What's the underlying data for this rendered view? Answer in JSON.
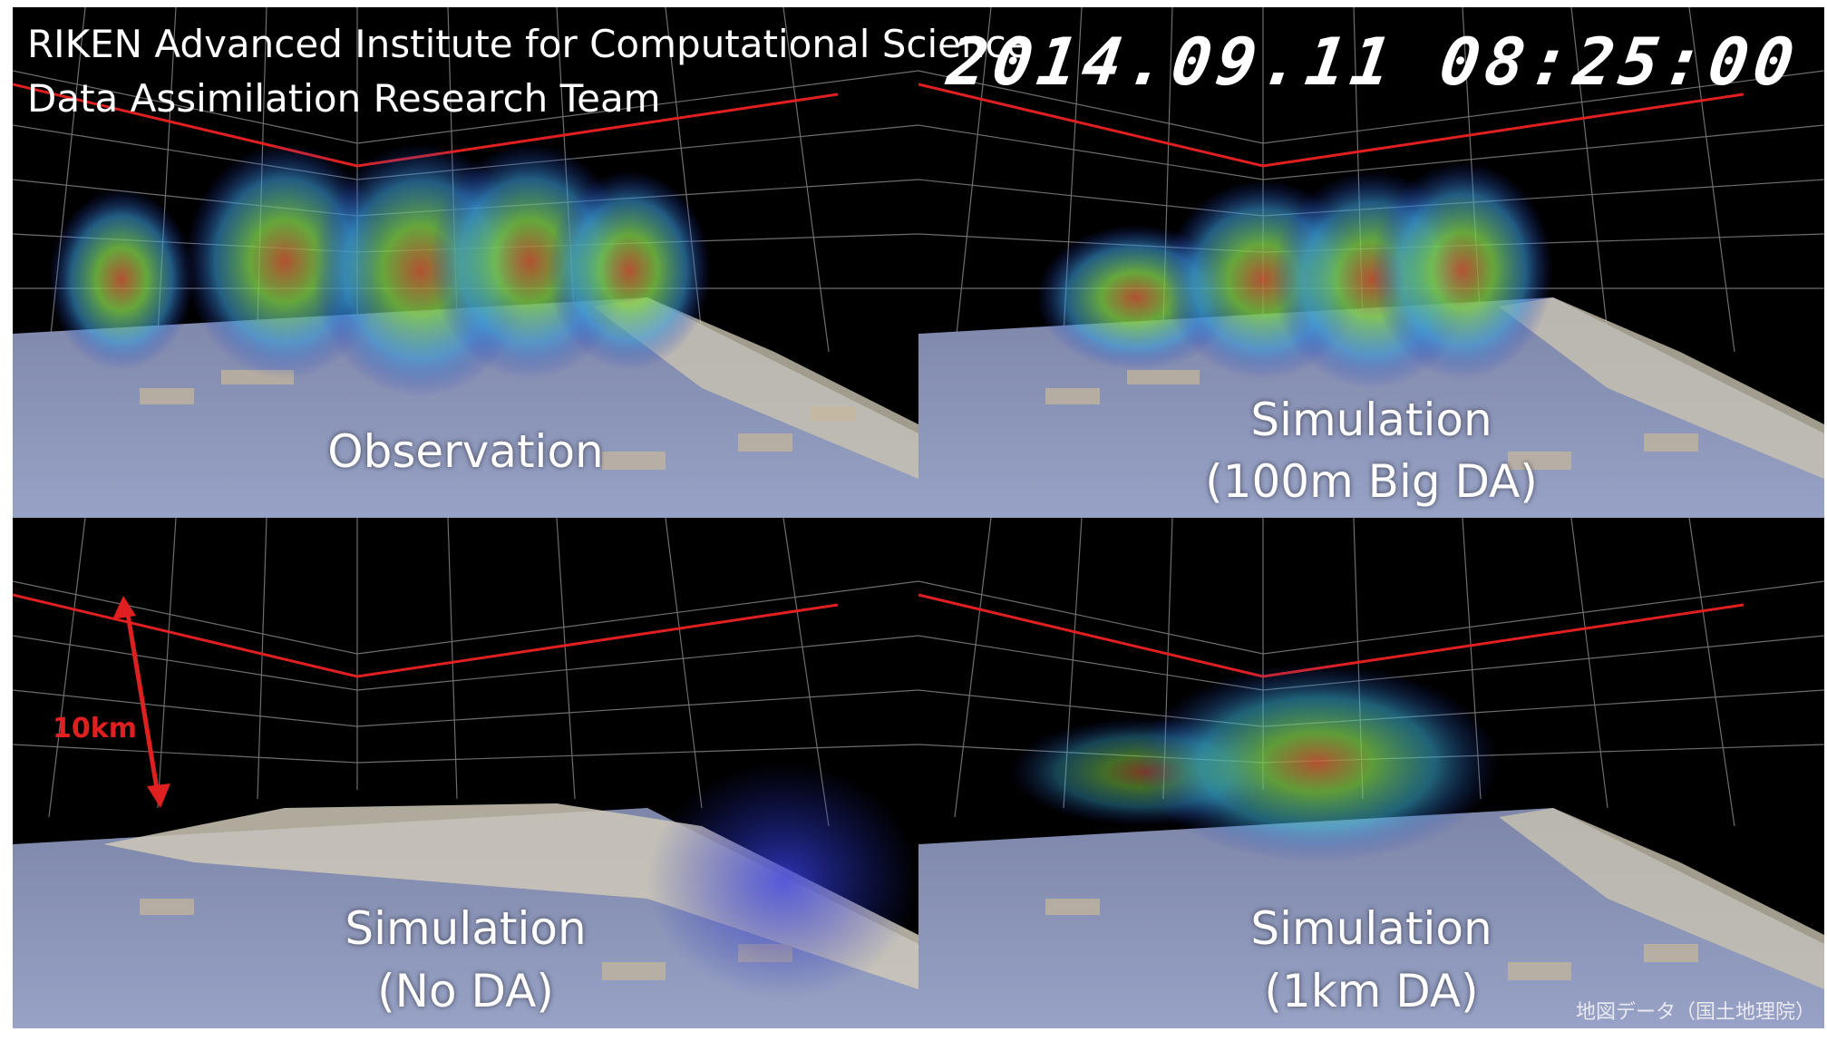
{
  "header": {
    "line1": "RIKEN Advanced Institute for Computational Science",
    "line2": "Data Assimilation Research Team",
    "timestamp": "2014.09.11 08:25:00"
  },
  "panels": {
    "top_left": {
      "line1": "Observation",
      "line2": ""
    },
    "top_right": {
      "line1": "Simulation",
      "line2": "(100m Big DA)"
    },
    "bottom_left": {
      "line1": "Simulation",
      "line2": "(No DA)"
    },
    "bottom_right": {
      "line1": "Simulation",
      "line2": "(1km DA)"
    }
  },
  "scale": {
    "label": "10km",
    "color": "#e02020"
  },
  "credit": "地図データ（国土地理院）",
  "colors": {
    "grid": "#8a8a8a",
    "tropopause_line": "#e02020",
    "map": "#8c96b8",
    "terrain": "#cfc8b8"
  }
}
